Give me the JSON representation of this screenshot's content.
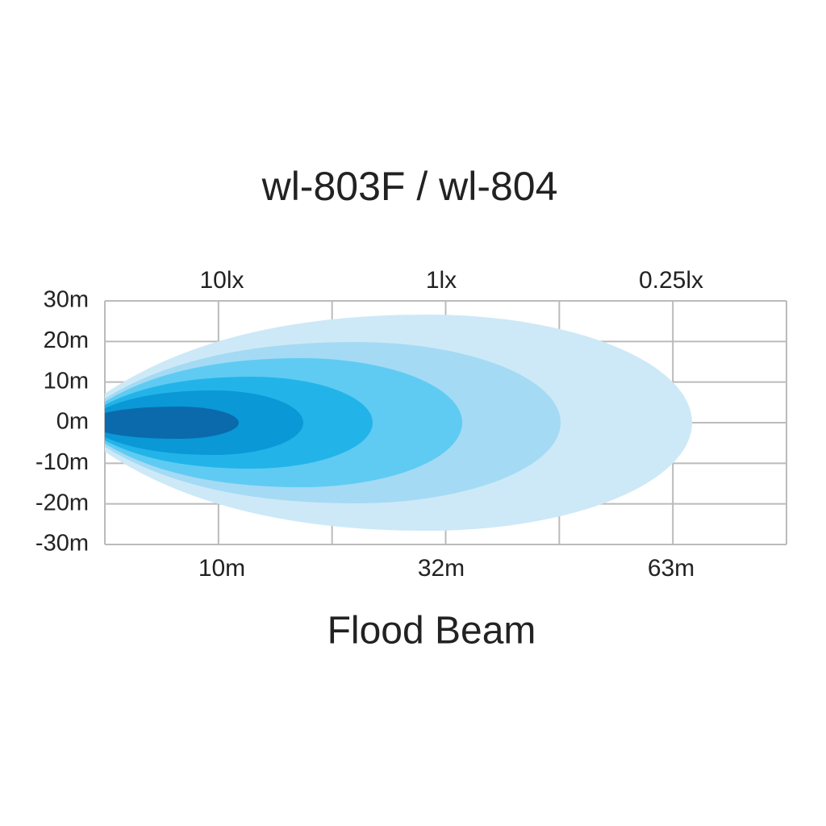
{
  "title": "wl-803F / wl-804",
  "y_labels": [
    "30m",
    "20m",
    "10m",
    "0m",
    "-10m",
    "-20m",
    "-30m"
  ],
  "top_labels": [
    "10lx",
    "1lx",
    "0.25lx"
  ],
  "bottom_labels": [
    "10m",
    "32m",
    "63m"
  ],
  "caption": "Flood Beam"
}
